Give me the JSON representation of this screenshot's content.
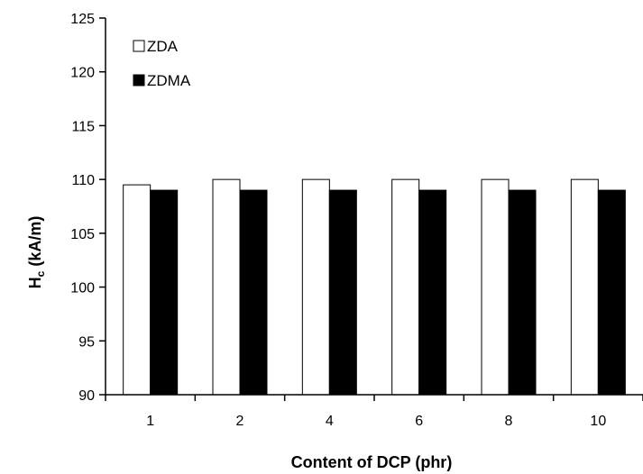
{
  "chart_data": {
    "type": "bar",
    "categories": [
      "1",
      "2",
      "4",
      "6",
      "8",
      "10"
    ],
    "series": [
      {
        "name": "ZDA",
        "values": [
          109.5,
          110,
          110,
          110,
          110,
          110
        ],
        "fill": "#ffffff",
        "stroke": "#000000"
      },
      {
        "name": "ZDMA",
        "values": [
          109,
          109,
          109,
          109,
          109,
          109
        ],
        "fill": "#000000",
        "stroke": "#000000"
      }
    ],
    "ylim": [
      90,
      125
    ],
    "yticks": [
      "90",
      "95",
      "100",
      "105",
      "110",
      "115",
      "120",
      "125"
    ],
    "xlabel": "Content of DCP (phr)",
    "ylabel_main": "H",
    "ylabel_sub": "c",
    "ylabel_rest": " (kA/m)",
    "legend_position": "top-left",
    "grid": false
  }
}
